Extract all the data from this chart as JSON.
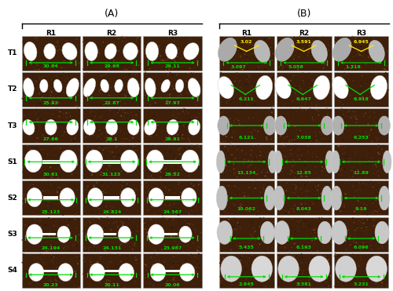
{
  "title_A": "(A)",
  "title_B": "(B)",
  "col_labels_A": [
    "R1",
    "R2",
    "R3"
  ],
  "col_labels_B": [
    "R1",
    "R2",
    "R3"
  ],
  "row_labels": [
    "T1",
    "T2",
    "T3",
    "S1",
    "S2",
    "S3",
    "S4"
  ],
  "measurements_A": [
    [
      "30.84",
      "29.68",
      "29.11"
    ],
    [
      "25.92",
      "22.87",
      "27.97"
    ],
    [
      "27.66",
      "28.1",
      "26.91"
    ],
    [
      "30.61",
      "31.123",
      "29.52"
    ],
    [
      "25.123",
      "24.824",
      "24.567"
    ],
    [
      "24.194",
      "24.131",
      "23.987"
    ],
    [
      "20.23",
      "20.11",
      "20.06"
    ]
  ],
  "measurements_B_main": [
    [
      "3.097",
      "5.058",
      "1.318"
    ],
    [
      "6.211",
      "6.947",
      "6.918"
    ],
    [
      "6.121",
      "7.038",
      "6.253"
    ],
    [
      "13.134",
      "12.85",
      "12.89"
    ],
    [
      "10.062",
      "8.043",
      "9.19"
    ],
    [
      "5.435",
      "6.193",
      "6.096"
    ],
    [
      "2.845",
      "3.381",
      "3.231"
    ]
  ],
  "measurements_B_secondary": [
    [
      "3.02 / 3.591",
      "3.591",
      "6.945"
    ],
    [
      "",
      "",
      ""
    ],
    [
      "",
      "",
      ""
    ],
    [
      "",
      "",
      ""
    ],
    [
      "",
      "",
      ""
    ],
    [
      "",
      "",
      ""
    ],
    [
      "",
      "",
      ""
    ]
  ],
  "bg_color": "#ffffff",
  "cell_bg_dark": "#3d1f0a",
  "cell_bg_light": "#7a4520",
  "label_color_green": "#00dd00",
  "label_color_yellow": "#ffee00",
  "row_label_fontsize": 6.5,
  "col_label_fontsize": 6.5,
  "title_fontsize": 9,
  "meas_fontsize": 4.5
}
